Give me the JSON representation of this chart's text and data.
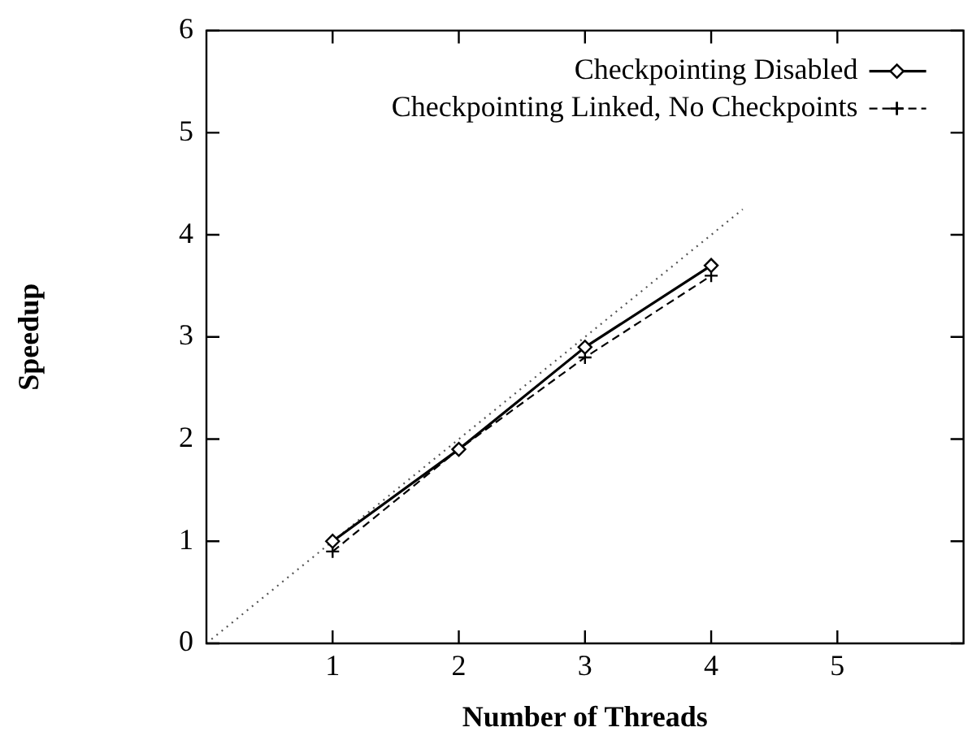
{
  "chart_data": {
    "type": "line",
    "xlabel": "Number of Threads",
    "ylabel": "Speedup",
    "x": [
      1,
      2,
      3,
      4
    ],
    "xlim": [
      0,
      6
    ],
    "xticks": [
      1,
      2,
      3,
      4,
      5
    ],
    "ylim": [
      0,
      6
    ],
    "yticks": [
      0,
      1,
      2,
      3,
      4,
      5,
      6
    ],
    "grid": false,
    "legend": "top right",
    "series": [
      {
        "name": "Checkpointing Disabled",
        "color": "#000000",
        "values": [
          1.0,
          1.9,
          2.9,
          3.7
        ],
        "marker": "diamond",
        "line_style": "solid"
      },
      {
        "name": "Checkpointing Linked, No Checkpoints",
        "color": "#000000",
        "values": [
          0.9,
          1.9,
          2.8,
          3.6
        ],
        "marker": "cross",
        "line_style": "dashed"
      },
      {
        "color": "#555555",
        "x": [
          0,
          4.25
        ],
        "values": [
          0,
          4.25
        ],
        "marker": "none",
        "line_style": "dotted"
      }
    ]
  }
}
